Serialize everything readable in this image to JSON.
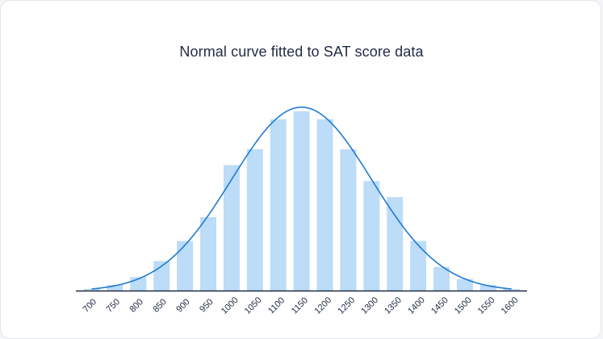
{
  "chart_data": {
    "type": "bar",
    "title": "Normal curve fitted to SAT score data",
    "xlabel": "",
    "ylabel": "",
    "categories": [
      "700",
      "750",
      "800",
      "850",
      "900",
      "950",
      "1000",
      "1050",
      "1100",
      "1150",
      "1200",
      "1250",
      "1300",
      "1350",
      "1400",
      "1450",
      "1500",
      "1550",
      "1600"
    ],
    "series": [
      {
        "type": "bar",
        "values": [
          1,
          3,
          7,
          15,
          25,
          37,
          63,
          71,
          86,
          90,
          86,
          71,
          55,
          47,
          25,
          12,
          6,
          3,
          1
        ]
      },
      {
        "type": "line",
        "fit": "normal",
        "mean": 1150,
        "sd": 150,
        "peak": 92
      }
    ],
    "ylim": [
      0,
      100
    ],
    "grid": false,
    "legend": "none",
    "colors": {
      "bar": "#bcdcf7",
      "curve": "#1f7ad4",
      "axis": "#1f2a44",
      "text": "#1f2a44"
    }
  }
}
